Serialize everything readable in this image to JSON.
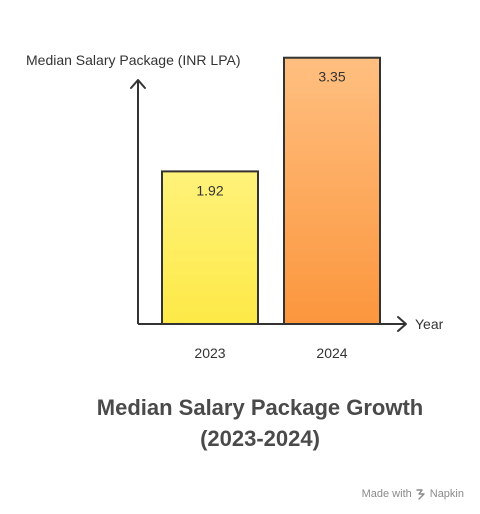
{
  "chart_data": {
    "type": "bar",
    "title": "Median Salary Package Growth (2023-2024)",
    "title_lines": [
      "Median Salary Package Growth",
      "(2023-2024)"
    ],
    "ylabel": "Median Salary Package (INR LPA)",
    "xlabel": "Year",
    "categories": [
      "2023",
      "2024"
    ],
    "values": [
      1.92,
      3.35
    ],
    "value_labels": [
      "1.92",
      "3.35"
    ],
    "ylim": [
      0,
      3.9
    ],
    "grid": false,
    "legend": "none",
    "bar_colors": [
      {
        "top": "#fff27a",
        "bottom": "#fde947",
        "stroke": "#333333"
      },
      {
        "top": "#ffbf80",
        "bottom": "#fb963d",
        "stroke": "#333333"
      }
    ]
  },
  "footer": {
    "made_with": "Made with",
    "brand": "Napkin",
    "brand_icon": "napkin-logo-icon"
  }
}
